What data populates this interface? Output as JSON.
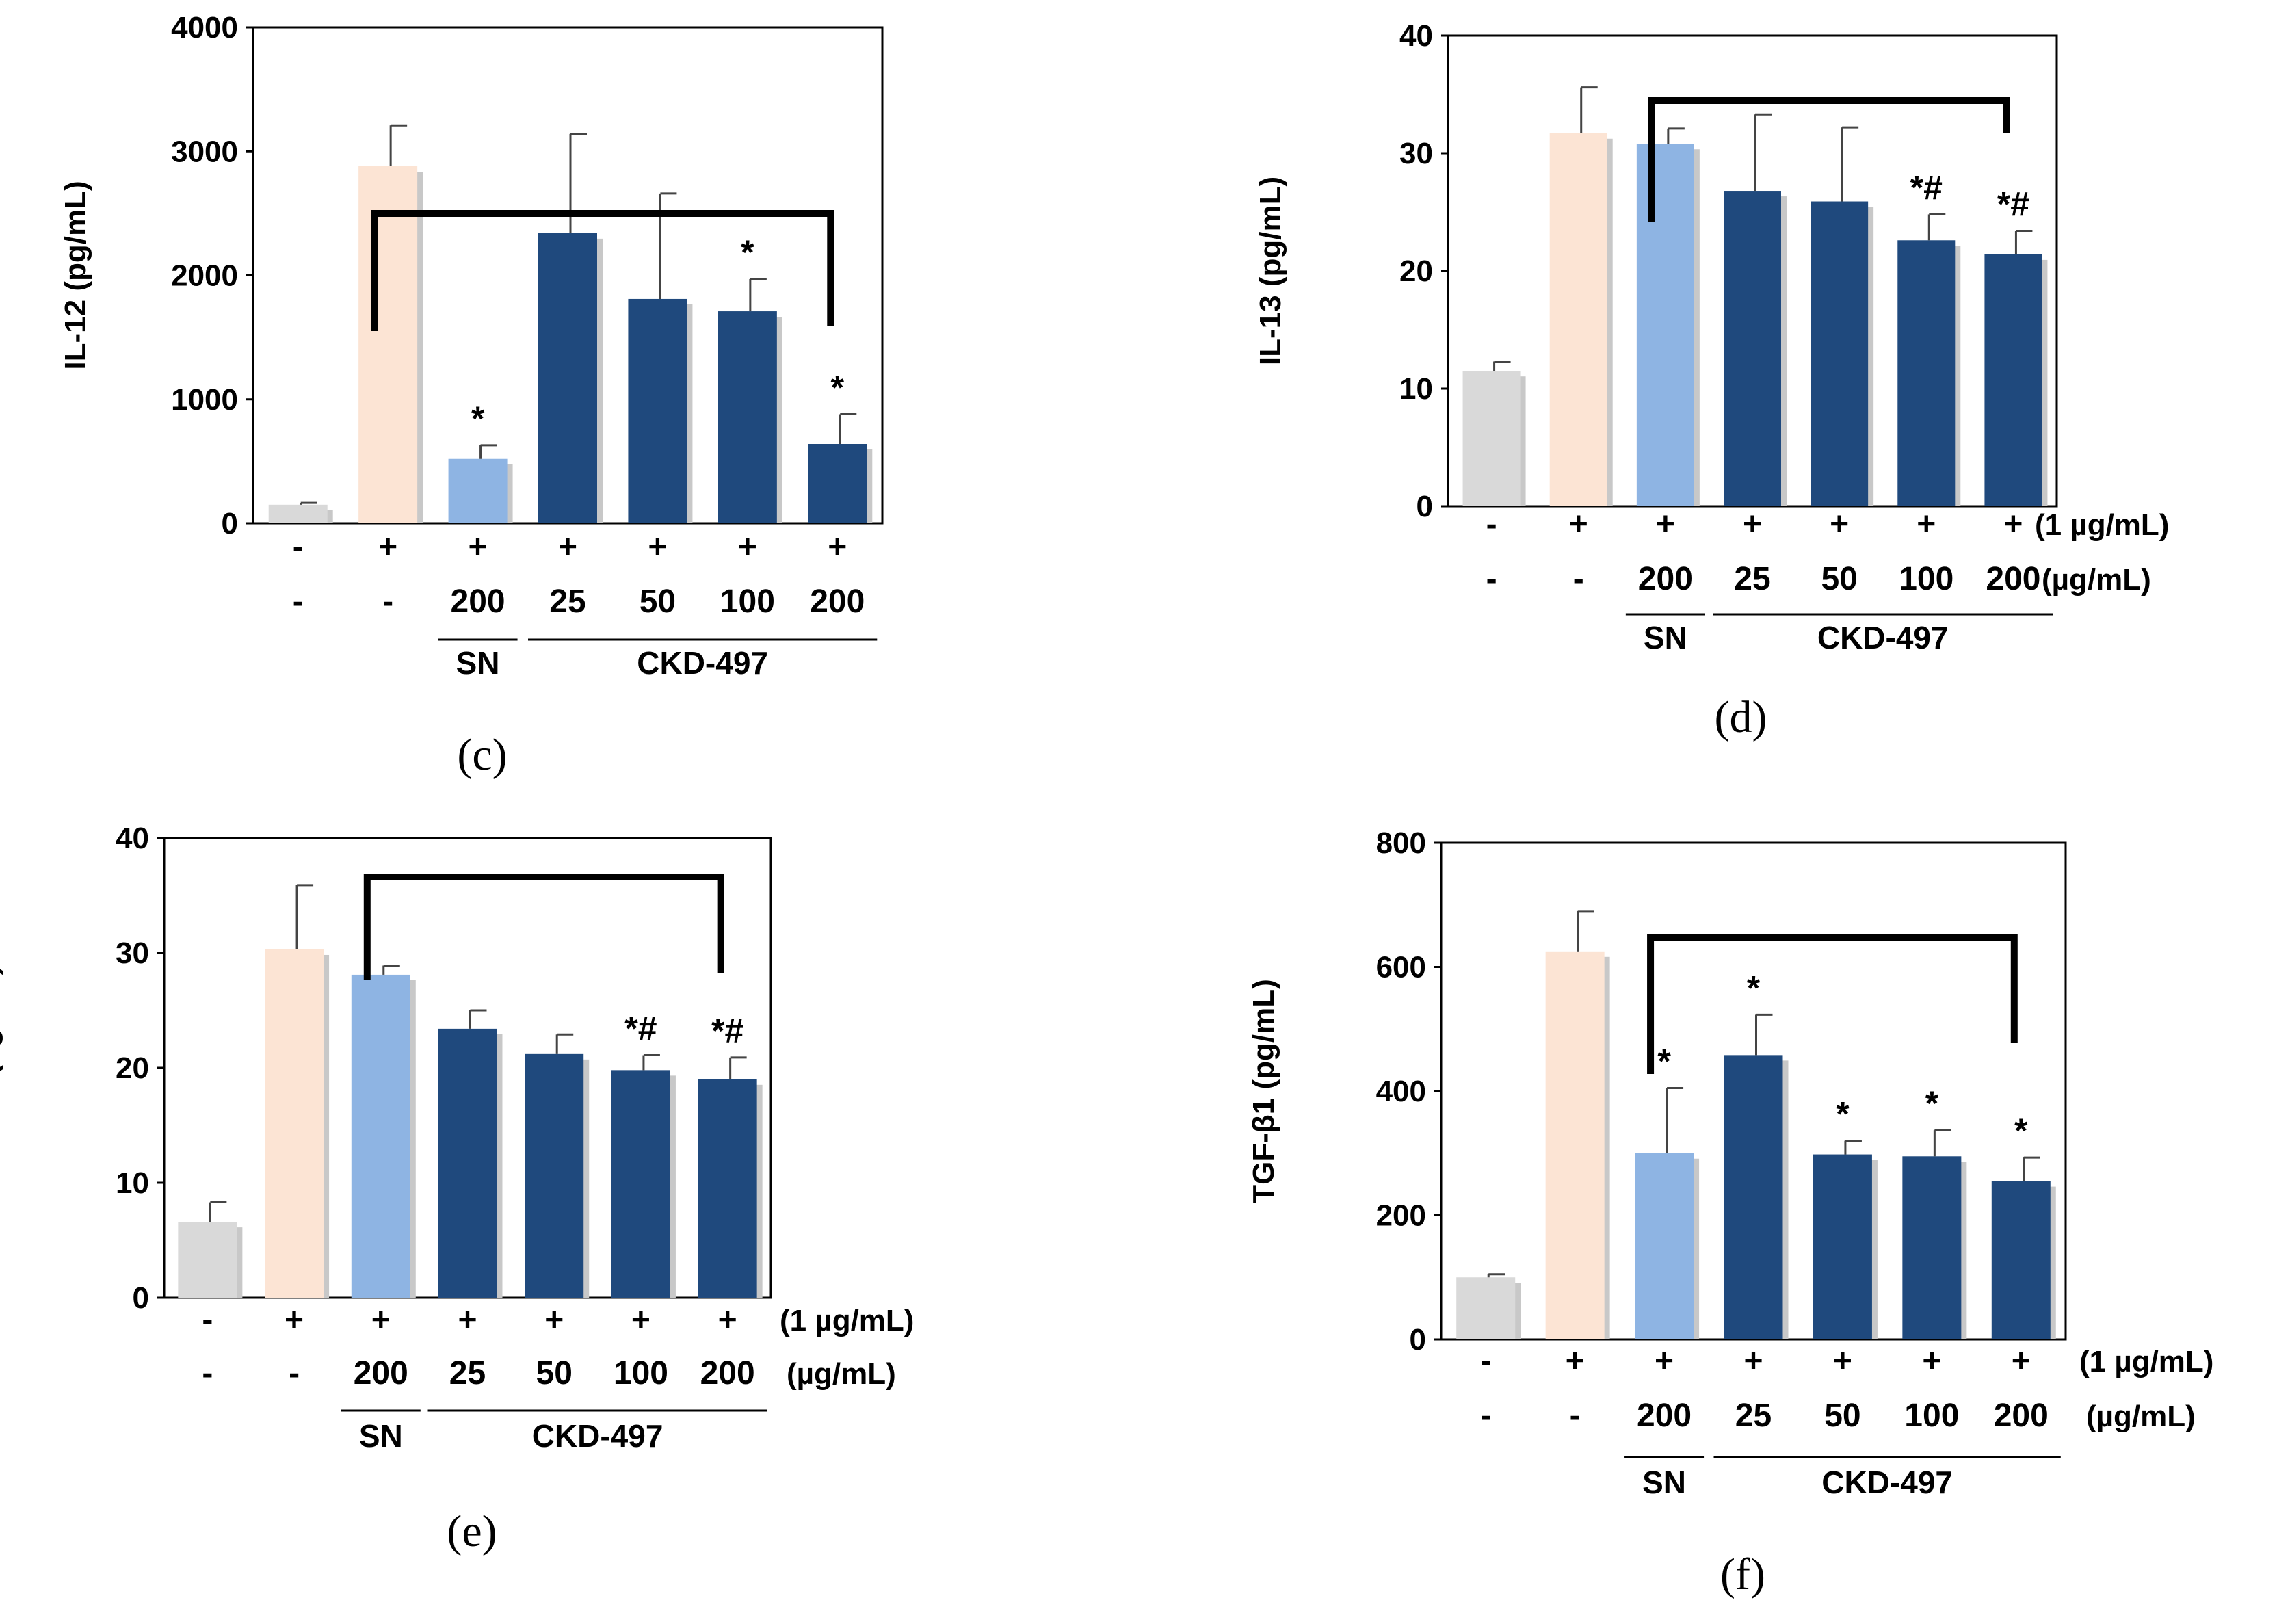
{
  "colors": {
    "control": "#d9d9d9",
    "stimulated": "#fce4d4",
    "sn": "#8eb4e3",
    "ckd": "#1f497d",
    "bracket": "#000000"
  },
  "chart_data": [
    {
      "type": "bar",
      "panel": "(c)",
      "ylabel": "IL-12  (pg/mL)",
      "ylim": [
        0,
        4000
      ],
      "yticks": [
        "0",
        "1000",
        "2000",
        "3000",
        "4000"
      ],
      "row1": [
        "-",
        "+",
        "+",
        "+",
        "+",
        "+",
        "+"
      ],
      "row2": [
        "-",
        "-",
        "200",
        "25",
        "50",
        "100",
        "200"
      ],
      "row1_unit": "",
      "row2_unit": "",
      "group_sn": "SN",
      "group_ckd": "CKD-497",
      "values": [
        150,
        2880,
        520,
        2340,
        1810,
        1710,
        640
      ],
      "errors": [
        15,
        330,
        110,
        800,
        850,
        260,
        240
      ],
      "annotations": [
        "",
        "",
        "*",
        "",
        "",
        "*",
        "*"
      ]
    },
    {
      "type": "bar",
      "panel": "(d)",
      "ylabel": "IL-13  (pg/mL)",
      "ylim": [
        0,
        40
      ],
      "yticks": [
        "0",
        "10",
        "20",
        "30",
        "40"
      ],
      "row1": [
        "-",
        "+",
        "+",
        "+",
        "+",
        "+",
        "+"
      ],
      "row2": [
        "-",
        "-",
        "200",
        "25",
        "50",
        "100",
        "200"
      ],
      "row1_unit": "(1 µg/mL)",
      "row2_unit": "(µg/mL)",
      "group_sn": "SN",
      "group_ckd": "CKD-497",
      "values": [
        11.5,
        31.7,
        30.8,
        26.8,
        25.9,
        22.6,
        21.4
      ],
      "errors": [
        0.8,
        3.9,
        1.3,
        6.5,
        6.3,
        2.2,
        2.0
      ],
      "annotations": [
        "",
        "",
        "",
        "",
        "",
        "*#",
        "*#"
      ]
    },
    {
      "type": "bar",
      "panel": "(e)",
      "ylabel": "TNF-α  (ng/mL)",
      "ylim": [
        0,
        40
      ],
      "yticks": [
        "0",
        "10",
        "20",
        "30",
        "40"
      ],
      "row1": [
        "-",
        "+",
        "+",
        "+",
        "+",
        "+",
        "+"
      ],
      "row2": [
        "-",
        "-",
        "200",
        "25",
        "50",
        "100",
        "200"
      ],
      "row1_unit": "(1 µg/mL)",
      "row2_unit": "(µg/mL)",
      "group_sn": "SN",
      "group_ckd": "CKD-497",
      "values": [
        6.6,
        30.3,
        28.1,
        23.4,
        21.2,
        19.8,
        19.0
      ],
      "errors": [
        1.7,
        5.6,
        0.8,
        1.6,
        1.7,
        1.3,
        1.9
      ],
      "annotations": [
        "",
        "",
        "",
        "",
        "",
        "*#",
        "*#"
      ]
    },
    {
      "type": "bar",
      "panel": "(f)",
      "ylabel": "TGF-β1  (pg/mL)",
      "ylim": [
        0,
        800
      ],
      "yticks": [
        "0",
        "200",
        "400",
        "600",
        "800"
      ],
      "row1": [
        "-",
        "+",
        "+",
        "+",
        "+",
        "+",
        "+"
      ],
      "row2": [
        "-",
        "-",
        "200",
        "25",
        "50",
        "100",
        "200"
      ],
      "row1_unit": "(1 µg/mL)",
      "row2_unit": "(µg/mL)",
      "group_sn": "SN",
      "group_ckd": "CKD-497",
      "values": [
        100,
        625,
        300,
        458,
        298,
        295,
        255
      ],
      "errors": [
        5,
        65,
        105,
        65,
        22,
        42,
        38
      ],
      "annotations": [
        "",
        "",
        "*",
        "*",
        "*",
        "*",
        "*"
      ]
    }
  ]
}
